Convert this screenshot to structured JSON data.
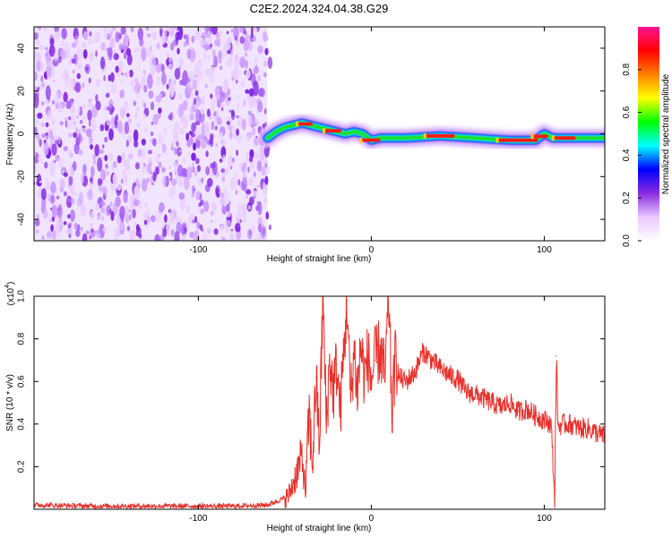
{
  "title": "C2E2.2024.324.04.38.G29",
  "chart_data": [
    {
      "type": "heatmap",
      "xlabel": "Height of straight line (km)",
      "ylabel": "Frequency (Hz)",
      "xlim": [
        -195,
        135
      ],
      "ylim": [
        -50,
        50
      ],
      "xticks": [
        "-100",
        "0",
        "100"
      ],
      "xtick_values": [
        -100,
        0,
        100
      ],
      "yticks": [
        "-40",
        "-20",
        "0",
        "20",
        "40"
      ],
      "ytick_values": [
        -40,
        -20,
        0,
        20,
        40
      ],
      "noise_region_x": [
        -195,
        -60
      ],
      "trace_points": [
        {
          "x": -60,
          "y": -2
        },
        {
          "x": -55,
          "y": 1
        },
        {
          "x": -50,
          "y": 3
        },
        {
          "x": -45,
          "y": 4
        },
        {
          "x": -40,
          "y": 5
        },
        {
          "x": -35,
          "y": 4
        },
        {
          "x": -30,
          "y": 3
        },
        {
          "x": -25,
          "y": 2
        },
        {
          "x": -20,
          "y": 1
        },
        {
          "x": -15,
          "y": 0
        },
        {
          "x": -10,
          "y": 1
        },
        {
          "x": -5,
          "y": 0
        },
        {
          "x": 0,
          "y": -3
        },
        {
          "x": 5,
          "y": -2
        },
        {
          "x": 20,
          "y": -2
        },
        {
          "x": 40,
          "y": -1
        },
        {
          "x": 60,
          "y": -2
        },
        {
          "x": 80,
          "y": -3
        },
        {
          "x": 95,
          "y": -3
        },
        {
          "x": 100,
          "y": 0
        },
        {
          "x": 105,
          "y": -2
        },
        {
          "x": 115,
          "y": -2
        },
        {
          "x": 135,
          "y": -2
        }
      ],
      "colorbar": {
        "label": "Normalized spectral amplitude",
        "ticks": [
          "0.0",
          "0.2",
          "0.4",
          "0.6",
          "0.8"
        ],
        "tick_values": [
          0.0,
          0.2,
          0.4,
          0.6,
          0.8
        ],
        "range": [
          0,
          1
        ],
        "colors": [
          "#ffffff",
          "#e9c8ff",
          "#8a2be2",
          "#0000ff",
          "#00ffff",
          "#00ff00",
          "#ffff00",
          "#ff8000",
          "#ff0000",
          "#ff1493"
        ]
      }
    },
    {
      "type": "line",
      "xlabel": "Height of straight line (km)",
      "ylabel": "SNR (10 * v/v)",
      "multiplier_label": "(x10",
      "multiplier_exp": "4",
      "multiplier_close": ")",
      "xlim": [
        -195,
        135
      ],
      "ylim": [
        0,
        1.0
      ],
      "xticks": [
        "-100",
        "0",
        "100"
      ],
      "xtick_values": [
        -100,
        0,
        100
      ],
      "yticks": [
        "0.2",
        "0.4",
        "0.6",
        "0.8",
        "1.0"
      ],
      "ytick_values": [
        0.2,
        0.4,
        0.6,
        0.8,
        1.0
      ],
      "color": "#e8302a",
      "series": [
        {
          "x": [
            -195,
            -160,
            -120,
            -80,
            -60,
            -48,
            -44,
            -40,
            -38,
            -36,
            -34,
            -32,
            -30,
            -28,
            -26,
            -24,
            -22,
            -20,
            -18,
            -16,
            -14,
            -12,
            -10,
            -8,
            -6,
            -4,
            -2,
            0,
            2,
            5,
            8,
            10,
            12,
            14,
            16,
            20,
            25,
            30,
            35,
            40,
            45,
            50,
            55,
            60,
            65,
            70,
            75,
            80,
            85,
            90,
            95,
            100,
            104,
            106,
            107,
            108,
            110,
            115,
            120,
            125,
            130,
            135
          ],
          "y": [
            0.02,
            0.015,
            0.015,
            0.015,
            0.02,
            0.06,
            0.15,
            0.25,
            0.08,
            0.45,
            0.2,
            0.62,
            0.3,
            1.0,
            0.4,
            0.7,
            0.55,
            0.68,
            0.45,
            0.72,
            0.98,
            0.5,
            0.75,
            0.55,
            0.78,
            0.62,
            0.72,
            0.6,
            0.7,
            0.75,
            0.62,
            1.0,
            0.45,
            0.72,
            0.62,
            0.6,
            0.64,
            0.74,
            0.7,
            0.66,
            0.63,
            0.61,
            0.55,
            0.54,
            0.52,
            0.5,
            0.48,
            0.5,
            0.46,
            0.47,
            0.44,
            0.42,
            0.4,
            0.05,
            0.72,
            0.38,
            0.4,
            0.4,
            0.38,
            0.38,
            0.36,
            0.34
          ]
        }
      ]
    }
  ]
}
